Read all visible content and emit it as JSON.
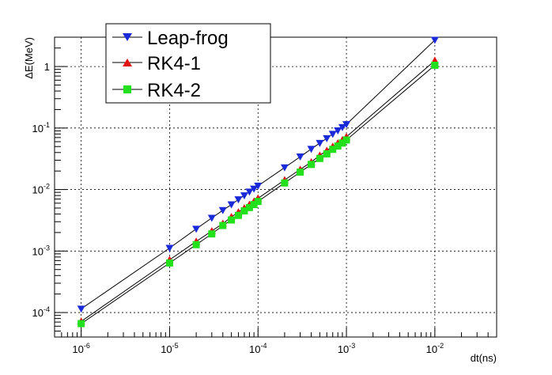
{
  "chart_data": {
    "type": "scatter",
    "xlabel": "dt(ns)",
    "ylabel": "ΔE(MeV)",
    "xscale": "log",
    "yscale": "log",
    "xlim": [
      5e-07,
      0.05
    ],
    "ylim": [
      4e-05,
      3.0
    ],
    "grid": true,
    "legend_position": "top-left",
    "x_ticks": [
      {
        "base": "10",
        "exp": "-6",
        "value": 1e-06
      },
      {
        "base": "10",
        "exp": "-5",
        "value": 1e-05
      },
      {
        "base": "10",
        "exp": "-4",
        "value": 0.0001
      },
      {
        "base": "10",
        "exp": "-3",
        "value": 0.001
      },
      {
        "base": "10",
        "exp": "-2",
        "value": 0.01
      }
    ],
    "y_ticks": [
      {
        "base": "10",
        "exp": "-4",
        "value": 0.0001
      },
      {
        "base": "10",
        "exp": "-3",
        "value": 0.001
      },
      {
        "base": "10",
        "exp": "-2",
        "value": 0.01
      },
      {
        "base": "10",
        "exp": "-1",
        "value": 0.1
      },
      {
        "base": "1",
        "exp": "",
        "value": 1
      }
    ],
    "series": [
      {
        "name": "Leap-frog",
        "marker": "triangle-down",
        "color": "#1a2ad9",
        "x": [
          1e-06,
          1e-05,
          2e-05,
          3e-05,
          4e-05,
          5e-05,
          6e-05,
          7e-05,
          8e-05,
          9e-05,
          0.0001,
          0.0002,
          0.0003,
          0.0004,
          0.0005,
          0.0006,
          0.0007,
          0.0008,
          0.0009,
          0.001,
          0.01
        ],
        "y": [
          0.000115,
          0.00112,
          0.00229,
          0.00345,
          0.0046,
          0.0057,
          0.0069,
          0.008,
          0.0092,
          0.0103,
          0.0115,
          0.0228,
          0.0342,
          0.0456,
          0.057,
          0.068,
          0.08,
          0.091,
          0.103,
          0.115,
          2.7
        ]
      },
      {
        "name": "RK4-1",
        "marker": "triangle-up",
        "color": "#e01010",
        "x": [
          1e-06,
          1e-05,
          2e-05,
          3e-05,
          4e-05,
          5e-05,
          6e-05,
          7e-05,
          8e-05,
          9e-05,
          0.0001,
          0.0002,
          0.0003,
          0.0004,
          0.0005,
          0.0006,
          0.0007,
          0.0008,
          0.0009,
          0.001,
          0.01
        ],
        "y": [
          7.2e-05,
          0.00072,
          0.00143,
          0.00212,
          0.0028,
          0.0036,
          0.0043,
          0.005,
          0.0057,
          0.0064,
          0.0072,
          0.0143,
          0.0212,
          0.028,
          0.036,
          0.043,
          0.05,
          0.057,
          0.064,
          0.072,
          1.25
        ]
      },
      {
        "name": "RK4-2",
        "marker": "square",
        "color": "#22e01c",
        "x": [
          1e-06,
          1e-05,
          2e-05,
          3e-05,
          4e-05,
          5e-05,
          6e-05,
          7e-05,
          8e-05,
          9e-05,
          0.0001,
          0.0002,
          0.0003,
          0.0004,
          0.0005,
          0.0006,
          0.0007,
          0.0008,
          0.0009,
          0.001,
          0.01
        ],
        "y": [
          6.6e-05,
          0.00064,
          0.00127,
          0.0019,
          0.0026,
          0.0032,
          0.0038,
          0.0045,
          0.0051,
          0.0057,
          0.0064,
          0.0128,
          0.0192,
          0.0256,
          0.032,
          0.038,
          0.045,
          0.051,
          0.057,
          0.064,
          1.05
        ]
      }
    ]
  }
}
